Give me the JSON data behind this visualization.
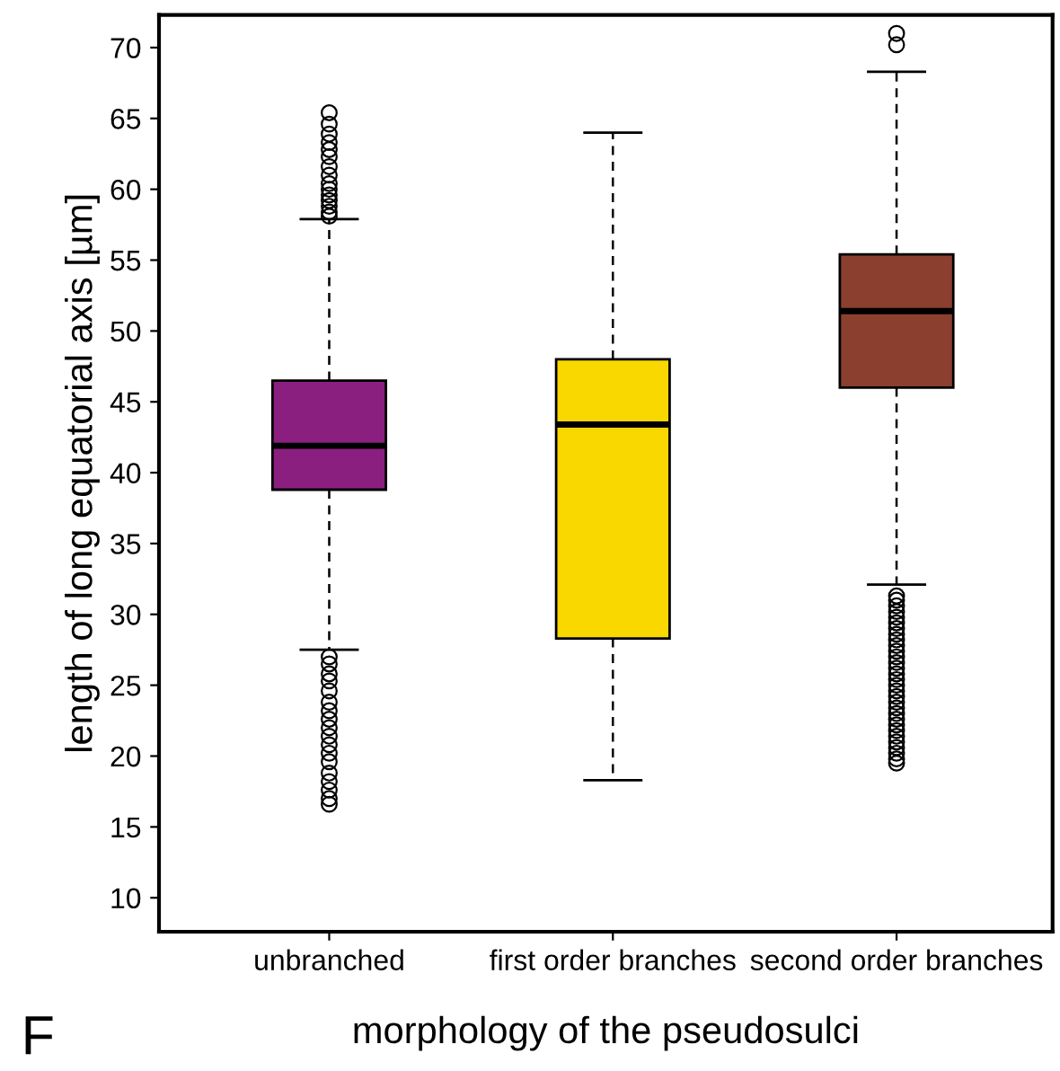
{
  "chart_data": {
    "type": "box",
    "xlabel": "morphology of the pseudosulci",
    "ylabel": "length of long equatorial axis [µm]",
    "annotations": [
      "F"
    ],
    "categories": [
      "unbranched",
      "first order branches",
      "second order branches"
    ],
    "colors": [
      "#8b1f7f",
      "#f9d800",
      "#8b3f2f"
    ],
    "boxes": [
      {
        "low": 27.5,
        "q1": 38.8,
        "median": 41.9,
        "q3": 46.5,
        "high": 57.9,
        "outliers": [
          58.1,
          58.4,
          58.8,
          59.2,
          59.6,
          60.0,
          60.4,
          61.0,
          61.6,
          62.3,
          62.8,
          63.3,
          63.9,
          64.6,
          65.4,
          27.0,
          26.5,
          25.8,
          25.3,
          24.6,
          23.8,
          23.2,
          22.6,
          22.0,
          21.4,
          20.8,
          20.2,
          19.6,
          18.8,
          18.2,
          17.6,
          17.0,
          16.6
        ]
      },
      {
        "low": 18.3,
        "q1": 28.3,
        "median": 43.4,
        "q3": 48.0,
        "high": 64.0
      },
      {
        "low": 32.1,
        "q1": 46.0,
        "median": 51.4,
        "q3": 55.4,
        "high": 68.3,
        "outliers": [
          70.2,
          71.0,
          31.3,
          31.0,
          30.6,
          30.2,
          29.8,
          29.4,
          29.0,
          28.6,
          28.2,
          27.8,
          27.4,
          27.0,
          26.6,
          26.2,
          25.8,
          25.4,
          25.0,
          24.6,
          24.2,
          23.8,
          23.4,
          23.0,
          22.6,
          22.2,
          21.8,
          21.4,
          21.0,
          20.6,
          20.2,
          19.8,
          19.5
        ]
      }
    ],
    "ylim": [
      7.6,
      72.3
    ],
    "yticks": [
      10,
      15,
      20,
      25,
      30,
      35,
      40,
      45,
      50,
      55,
      60,
      65,
      70
    ],
    "grid": false
  }
}
